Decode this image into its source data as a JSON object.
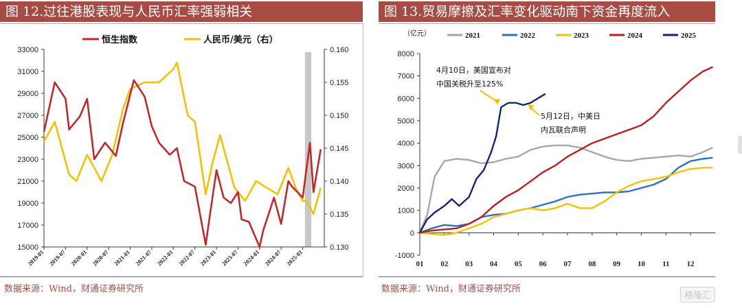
{
  "left_panel": {
    "title": "图 12.过往港股表现与人民币汇率强弱相关",
    "source": "数据来源：Wind，财通证券研究所"
  },
  "right_panel": {
    "title": "图 13.贸易摩擦及汇率变化驱动南下资金再度流入",
    "source": "数据来源：Wind，财通证券研究所"
  },
  "watermark": "格隆汇",
  "colors": {
    "title_bg": "#a84c43",
    "hsi": "#c0282b",
    "cny": "#f5c000",
    "y2021": "#a6a6a6",
    "y2022": "#2a72c0",
    "y2023": "#f5c000",
    "y2024": "#c01b1b",
    "y2025": "#12237a",
    "shade": "#c8c8c8"
  },
  "chart_data": [
    {
      "type": "line",
      "legend": [
        "恒生指数",
        "人民币/美元（右）"
      ],
      "left_axis": {
        "ticks": [
          "33000",
          "31000",
          "29000",
          "27000",
          "25000",
          "23000",
          "21000",
          "19000",
          "17000",
          "15000"
        ],
        "ylim": [
          15000,
          33000
        ]
      },
      "right_axis": {
        "ticks": [
          "0.160",
          "0.155",
          "0.150",
          "0.145",
          "0.140",
          "0.135",
          "0.130"
        ],
        "ylim": [
          0.13,
          0.16
        ]
      },
      "x_ticks": [
        "2019-01",
        "2019-07",
        "2020-01",
        "2020-07",
        "2021-01",
        "2021-07",
        "2022-01",
        "2022-07",
        "2023-01",
        "2023-07",
        "2024-01",
        "2024-07",
        "2025-01"
      ],
      "xlim": [
        "2019-01",
        "2025-07"
      ],
      "shaded_period": [
        "2025-02",
        "2025-03"
      ],
      "series": [
        {
          "name": "恒生指数",
          "axis": "left",
          "x": [
            "2019-01",
            "2019-04",
            "2019-07",
            "2019-08",
            "2019-11",
            "2020-01",
            "2020-03",
            "2020-06",
            "2020-09",
            "2020-11",
            "2021-02",
            "2021-05",
            "2021-07",
            "2021-09",
            "2021-12",
            "2022-02",
            "2022-04",
            "2022-07",
            "2022-10",
            "2022-11",
            "2023-01",
            "2023-03",
            "2023-05",
            "2023-07",
            "2023-08",
            "2023-10",
            "2024-01",
            "2024-02",
            "2024-05",
            "2024-07",
            "2024-09",
            "2024-10",
            "2025-01",
            "2025-03",
            "2025-04",
            "2025-06"
          ],
          "values": [
            25500,
            30000,
            28500,
            25700,
            26900,
            28500,
            23000,
            24500,
            23300,
            26300,
            30200,
            28700,
            26000,
            24500,
            23400,
            24000,
            21000,
            20500,
            15200,
            17500,
            22000,
            19500,
            19000,
            20000,
            17500,
            17300,
            15000,
            16500,
            19500,
            17100,
            21000,
            20500,
            19500,
            24500,
            20000,
            23900
          ]
        },
        {
          "name": "人民币/美元（右）",
          "axis": "right",
          "x": [
            "2019-01",
            "2019-04",
            "2019-08",
            "2019-10",
            "2020-01",
            "2020-05",
            "2020-08",
            "2020-11",
            "2021-01",
            "2021-05",
            "2021-09",
            "2022-01",
            "2022-02",
            "2022-05",
            "2022-07",
            "2022-10",
            "2022-12",
            "2023-02",
            "2023-06",
            "2023-09",
            "2023-12",
            "2024-03",
            "2024-06",
            "2024-09",
            "2024-11",
            "2025-01",
            "2025-02",
            "2025-04",
            "2025-06"
          ],
          "values": [
            0.146,
            0.149,
            0.141,
            0.14,
            0.144,
            0.14,
            0.144,
            0.151,
            0.154,
            0.155,
            0.155,
            0.157,
            0.158,
            0.15,
            0.149,
            0.138,
            0.143,
            0.147,
            0.139,
            0.137,
            0.14,
            0.139,
            0.138,
            0.142,
            0.139,
            0.137,
            0.137,
            0.135,
            0.139
          ]
        }
      ]
    },
    {
      "type": "line",
      "y_unit": "（亿元）",
      "legend": [
        "2021",
        "2022",
        "2023",
        "2024",
        "2025"
      ],
      "y_ticks": [
        "8000",
        "7000",
        "6000",
        "5000",
        "4000",
        "3000",
        "2000",
        "1000",
        "0",
        "-1000"
      ],
      "ylim": [
        -1000,
        8000
      ],
      "x_ticks": [
        "01",
        "02",
        "03",
        "04",
        "05",
        "06",
        "07",
        "08",
        "09",
        "10",
        "11",
        "12"
      ],
      "xlim": [
        1,
        13
      ],
      "annotations": [
        {
          "text": [
            "4月10日，美国宣布对",
            "中国关税升至125%"
          ],
          "x": 4.1,
          "y": 5600
        },
        {
          "text": [
            "5月12日，中美日",
            "内瓦联合声明"
          ],
          "x": 5.4,
          "y": 5800
        }
      ],
      "series": [
        {
          "name": "2021",
          "x": [
            1,
            1.3,
            1.6,
            2.0,
            2.5,
            3.0,
            3.5,
            4.0,
            4.5,
            5.0,
            5.5,
            6.0,
            6.5,
            7.0,
            7.5,
            8.0,
            8.5,
            9.0,
            9.5,
            10.0,
            10.5,
            11.0,
            11.5,
            12.0,
            12.5,
            12.9
          ],
          "values": [
            0,
            800,
            2500,
            3200,
            3300,
            3250,
            3100,
            3150,
            3300,
            3400,
            3700,
            3850,
            3900,
            3900,
            3800,
            3600,
            3400,
            3250,
            3200,
            3300,
            3350,
            3400,
            3450,
            3400,
            3600,
            3800
          ]
        },
        {
          "name": "2022",
          "x": [
            1,
            1.5,
            2.0,
            2.5,
            3.0,
            3.5,
            4.0,
            4.5,
            5.0,
            5.5,
            6.0,
            6.5,
            7.0,
            7.5,
            8.0,
            8.5,
            9.0,
            9.5,
            10.0,
            10.5,
            11.0,
            11.5,
            12.0,
            12.5,
            12.9
          ],
          "values": [
            0,
            200,
            350,
            300,
            400,
            700,
            800,
            850,
            1000,
            1100,
            1250,
            1400,
            1600,
            1700,
            1750,
            1800,
            1800,
            1850,
            2000,
            2150,
            2400,
            2900,
            3200,
            3300,
            3350
          ]
        },
        {
          "name": "2023",
          "x": [
            1,
            1.5,
            2.0,
            2.5,
            3.0,
            3.5,
            4.0,
            4.5,
            5.0,
            5.5,
            6.0,
            6.5,
            7.0,
            7.5,
            8.0,
            8.5,
            9.0,
            9.5,
            10.0,
            10.5,
            11.0,
            11.5,
            12.0,
            12.5,
            12.9
          ],
          "values": [
            0,
            -50,
            -100,
            0,
            200,
            400,
            700,
            850,
            1000,
            1100,
            1000,
            1100,
            1300,
            1100,
            1100,
            1400,
            1800,
            2100,
            2300,
            2400,
            2500,
            2700,
            2850,
            2900,
            2900
          ]
        },
        {
          "name": "2024",
          "x": [
            1,
            1.5,
            2.0,
            2.5,
            3.0,
            3.5,
            4.0,
            4.5,
            5.0,
            5.5,
            6.0,
            6.5,
            7.0,
            7.5,
            8.0,
            8.5,
            9.0,
            9.5,
            10.0,
            10.5,
            11.0,
            11.5,
            12.0,
            12.5,
            12.9
          ],
          "values": [
            0,
            100,
            150,
            200,
            400,
            700,
            1200,
            1600,
            1900,
            2300,
            2700,
            3000,
            3400,
            3700,
            4000,
            4200,
            4400,
            4600,
            4800,
            5200,
            5800,
            6300,
            6800,
            7200,
            7400
          ]
        },
        {
          "name": "2025",
          "x": [
            1,
            1.3,
            1.6,
            2.0,
            2.3,
            2.6,
            3.0,
            3.3,
            3.6,
            3.9,
            4.1,
            4.3,
            4.6,
            4.9,
            5.2,
            5.5,
            5.8,
            6.1
          ],
          "values": [
            0,
            600,
            900,
            1200,
            1500,
            1200,
            1600,
            2400,
            2800,
            3600,
            4300,
            5600,
            5800,
            5800,
            5700,
            5800,
            6000,
            6200
          ]
        }
      ]
    }
  ]
}
